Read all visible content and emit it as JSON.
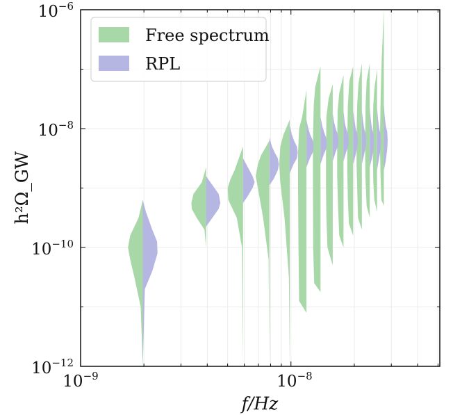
{
  "chart_data": {
    "type": "violin",
    "xlabel": "f/Hz",
    "ylabel": "h²Ω_GW",
    "x_scale": "log",
    "y_scale": "log",
    "xlim": [
      1e-09,
      5.1e-08
    ],
    "ylim": [
      1e-12,
      1e-06
    ],
    "grid": true,
    "legend_position": "top-left",
    "x_ticks": [
      {
        "value": 1e-09,
        "base": "10",
        "exp": "−9"
      },
      {
        "value": 1e-08,
        "base": "10",
        "exp": "−8"
      }
    ],
    "y_ticks": [
      {
        "value": 1e-12,
        "base": "10",
        "exp": "−12"
      },
      {
        "value": 1e-10,
        "base": "10",
        "exp": "−10"
      },
      {
        "value": 1e-08,
        "base": "10",
        "exp": "−8"
      },
      {
        "value": 1e-06,
        "base": "10",
        "exp": "−6"
      }
    ],
    "series": [
      {
        "name": "Free spectrum",
        "side": "left",
        "color": "#a8d8a8",
        "violins": [
          {
            "x": 1.975e-09,
            "log_y": [
              -12.0,
              -11.0,
              -10.5,
              -10.2,
              -10.0,
              -9.8,
              -9.5,
              -9.2
            ],
            "half_width_decades": [
              0.0,
              0.01,
              0.04,
              0.06,
              0.07,
              0.06,
              0.02,
              0.0
            ]
          },
          {
            "x": 3.95e-09,
            "log_y": [
              -10.0,
              -9.7,
              -9.5,
              -9.35,
              -9.25,
              -9.1,
              -8.9,
              -8.65
            ],
            "half_width_decades": [
              0.0,
              0.008,
              0.045,
              0.068,
              0.07,
              0.06,
              0.02,
              0.0
            ]
          },
          {
            "x": 5.92e-09,
            "log_y": [
              -12.0,
              -10.0,
              -9.5,
              -9.2,
              -9.0,
              -8.85,
              -8.7,
              -8.3
            ],
            "half_width_decades": [
              0.0,
              0.005,
              0.03,
              0.07,
              0.073,
              0.06,
              0.04,
              0.0
            ]
          },
          {
            "x": 7.9e-09,
            "log_y": [
              -12.0,
              -10.2,
              -9.5,
              -9.0,
              -8.8,
              -8.6,
              -8.45,
              -8.2
            ],
            "half_width_decades": [
              0.0,
              0.004,
              0.03,
              0.055,
              0.065,
              0.055,
              0.04,
              0.0
            ]
          },
          {
            "x": 9.87e-09,
            "log_y": [
              -12.0,
              -10.5,
              -9.5,
              -8.9,
              -8.6,
              -8.3,
              -8.1,
              -7.85
            ],
            "half_width_decades": [
              0.0,
              0.004,
              0.025,
              0.045,
              0.05,
              0.045,
              0.03,
              0.0
            ]
          },
          {
            "x": 1.185e-08,
            "log_y": [
              -11.1,
              -10.9,
              -10.0,
              -9.0,
              -8.4,
              -8.0,
              -7.8,
              -7.35
            ],
            "half_width_decades": [
              0.0,
              0.035,
              0.038,
              0.04,
              0.04,
              0.035,
              0.02,
              0.0
            ]
          },
          {
            "x": 1.382e-08,
            "log_y": [
              -10.75,
              -10.6,
              -10.0,
              -9.0,
              -8.2,
              -7.6,
              -7.3,
              -6.95
            ],
            "half_width_decades": [
              0.0,
              0.03,
              0.035,
              0.036,
              0.036,
              0.032,
              0.025,
              0.0
            ]
          },
          {
            "x": 1.58e-08,
            "log_y": [
              -10.3,
              -10.0,
              -9.5,
              -9.0,
              -8.4,
              -7.8,
              -7.5,
              -7.25
            ],
            "half_width_decades": [
              0.0,
              0.025,
              0.03,
              0.032,
              0.032,
              0.03,
              0.02,
              0.0
            ]
          },
          {
            "x": 1.777e-08,
            "log_y": [
              -10.0,
              -9.8,
              -9.3,
              -8.8,
              -8.3,
              -7.7,
              -7.4,
              -7.1
            ],
            "half_width_decades": [
              0.0,
              0.02,
              0.026,
              0.03,
              0.03,
              0.028,
              0.02,
              0.0
            ]
          },
          {
            "x": 1.975e-08,
            "log_y": [
              -9.8,
              -9.6,
              -9.2,
              -8.7,
              -8.2,
              -7.6,
              -7.2,
              -6.95
            ],
            "half_width_decades": [
              0.0,
              0.02,
              0.025,
              0.028,
              0.028,
              0.025,
              0.018,
              0.0
            ]
          },
          {
            "x": 2.172e-08,
            "log_y": [
              -9.7,
              -9.5,
              -9.0,
              -8.6,
              -8.1,
              -7.6,
              -7.25,
              -6.9
            ],
            "half_width_decades": [
              0.0,
              0.018,
              0.022,
              0.025,
              0.025,
              0.022,
              0.016,
              0.0
            ]
          },
          {
            "x": 2.37e-08,
            "log_y": [
              -9.5,
              -9.3,
              -8.9,
              -8.5,
              -8.1,
              -7.6,
              -7.2,
              -6.9
            ],
            "half_width_decades": [
              0.0,
              0.015,
              0.02,
              0.022,
              0.022,
              0.02,
              0.015,
              0.0
            ]
          },
          {
            "x": 2.567e-08,
            "log_y": [
              -9.4,
              -9.2,
              -8.9,
              -8.5,
              -8.0,
              -7.6,
              -7.3,
              -7.0
            ],
            "half_width_decades": [
              0.0,
              0.013,
              0.018,
              0.02,
              0.02,
              0.018,
              0.012,
              0.0
            ]
          },
          {
            "x": 2.765e-08,
            "log_y": [
              -9.3,
              -9.2,
              -8.8,
              -8.4,
              -8.0,
              -7.4,
              -6.8,
              -6.0
            ],
            "half_width_decades": [
              0.0,
              0.012,
              0.016,
              0.018,
              0.018,
              0.015,
              0.01,
              0.0
            ]
          }
        ]
      },
      {
        "name": "RPL",
        "side": "right",
        "color": "#b6b6e2",
        "violins": [
          {
            "x": 1.975e-09,
            "log_y": [
              -12.0,
              -10.7,
              -10.4,
              -10.1,
              -9.9,
              -9.7,
              -9.4,
              -9.2
            ],
            "half_width_decades": [
              0.0,
              0.01,
              0.045,
              0.07,
              0.068,
              0.045,
              0.015,
              0.0
            ]
          },
          {
            "x": 3.95e-09,
            "log_y": [
              -9.65,
              -9.5,
              -9.35,
              -9.25,
              -9.1,
              -9.0,
              -8.9,
              -8.8
            ],
            "half_width_decades": [
              0.0,
              0.03,
              0.06,
              0.068,
              0.06,
              0.04,
              0.02,
              0.0
            ]
          },
          {
            "x": 5.92e-09,
            "log_y": [
              -9.25,
              -9.15,
              -9.0,
              -8.9,
              -8.8,
              -8.7,
              -8.6,
              -8.5
            ],
            "half_width_decades": [
              0.0,
              0.02,
              0.045,
              0.055,
              0.045,
              0.03,
              0.015,
              0.0
            ]
          },
          {
            "x": 7.9e-09,
            "log_y": [
              -8.95,
              -8.85,
              -8.7,
              -8.6,
              -8.5,
              -8.4,
              -8.3,
              -8.15
            ],
            "half_width_decades": [
              0.0,
              0.02,
              0.04,
              0.045,
              0.04,
              0.025,
              0.012,
              0.0
            ]
          },
          {
            "x": 9.87e-09,
            "log_y": [
              -8.75,
              -8.6,
              -8.5,
              -8.4,
              -8.3,
              -8.2,
              -8.1,
              -7.95
            ],
            "half_width_decades": [
              0.0,
              0.018,
              0.034,
              0.038,
              0.034,
              0.02,
              0.01,
              0.0
            ]
          },
          {
            "x": 1.185e-08,
            "log_y": [
              -8.65,
              -8.5,
              -8.4,
              -8.3,
              -8.2,
              -8.1,
              -8.0,
              -7.85
            ],
            "half_width_decades": [
              0.0,
              0.016,
              0.03,
              0.034,
              0.03,
              0.018,
              0.009,
              0.0
            ]
          },
          {
            "x": 1.382e-08,
            "log_y": [
              -8.6,
              -8.45,
              -8.35,
              -8.25,
              -8.15,
              -8.05,
              -7.95,
              -7.8
            ],
            "half_width_decades": [
              0.0,
              0.014,
              0.026,
              0.03,
              0.026,
              0.016,
              0.008,
              0.0
            ]
          },
          {
            "x": 1.58e-08,
            "log_y": [
              -8.55,
              -8.4,
              -8.3,
              -8.2,
              -8.1,
              -8.0,
              -7.9,
              -7.75
            ],
            "half_width_decades": [
              0.0,
              0.013,
              0.024,
              0.027,
              0.024,
              0.014,
              0.007,
              0.0
            ]
          },
          {
            "x": 1.777e-08,
            "log_y": [
              -8.55,
              -8.4,
              -8.3,
              -8.2,
              -8.1,
              -8.0,
              -7.9,
              -7.7
            ],
            "half_width_decades": [
              0.0,
              0.012,
              0.022,
              0.025,
              0.022,
              0.013,
              0.006,
              0.0
            ]
          },
          {
            "x": 1.975e-08,
            "log_y": [
              -8.6,
              -8.45,
              -8.3,
              -8.2,
              -8.1,
              -8.0,
              -7.85,
              -7.7
            ],
            "half_width_decades": [
              0.0,
              0.011,
              0.02,
              0.023,
              0.02,
              0.012,
              0.006,
              0.0
            ]
          },
          {
            "x": 2.172e-08,
            "log_y": [
              -8.6,
              -8.45,
              -8.3,
              -8.2,
              -8.1,
              -8.0,
              -7.85,
              -7.7
            ],
            "half_width_decades": [
              0.0,
              0.01,
              0.019,
              0.021,
              0.019,
              0.011,
              0.005,
              0.0
            ]
          },
          {
            "x": 2.37e-08,
            "log_y": [
              -8.65,
              -8.5,
              -8.35,
              -8.2,
              -8.1,
              -8.0,
              -7.85,
              -7.65
            ],
            "half_width_decades": [
              0.0,
              0.01,
              0.018,
              0.02,
              0.018,
              0.01,
              0.005,
              0.0
            ]
          },
          {
            "x": 2.567e-08,
            "log_y": [
              -8.7,
              -8.5,
              -8.35,
              -8.2,
              -8.1,
              -8.0,
              -7.85,
              -7.65
            ],
            "half_width_decades": [
              0.0,
              0.009,
              0.017,
              0.019,
              0.017,
              0.01,
              0.005,
              0.0
            ]
          },
          {
            "x": 2.765e-08,
            "log_y": [
              -8.7,
              -8.55,
              -8.35,
              -8.2,
              -8.05,
              -7.95,
              -7.8,
              -7.6
            ],
            "half_width_decades": [
              0.0,
              0.009,
              0.016,
              0.018,
              0.016,
              0.009,
              0.004,
              0.0
            ]
          }
        ]
      }
    ]
  }
}
